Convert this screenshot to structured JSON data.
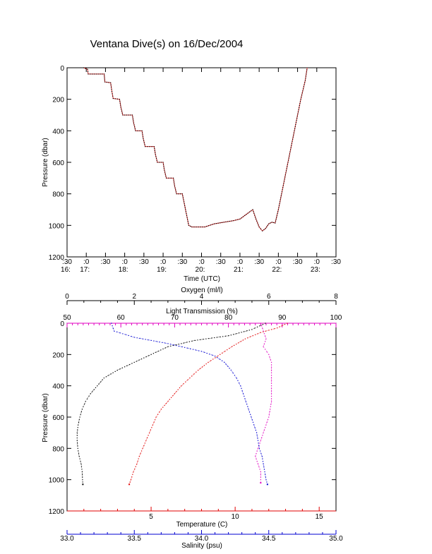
{
  "title": "Ventana Dive(s) on 16/Dec/2004",
  "chart_data": [
    {
      "type": "line",
      "name": "time-series",
      "xlabel": "Time (UTC)",
      "ylabel": "Pressure (dbar)",
      "xlim": [
        "16:30",
        "23:30"
      ],
      "ylim": [
        1200,
        0
      ],
      "x_ticks": [
        {
          "top": ":30",
          "bottom": "16:"
        },
        {
          "top": ":0",
          "bottom": "17:"
        },
        {
          "top": ":30",
          "bottom": ""
        },
        {
          "top": ":0",
          "bottom": "18:"
        },
        {
          "top": ":30",
          "bottom": ""
        },
        {
          "top": ":0",
          "bottom": "19:"
        },
        {
          "top": ":30",
          "bottom": ""
        },
        {
          "top": ":0",
          "bottom": "20:"
        },
        {
          "top": ":30",
          "bottom": ""
        },
        {
          "top": ":0",
          "bottom": "21:"
        },
        {
          "top": ":30",
          "bottom": ""
        },
        {
          "top": ":0",
          "bottom": "22:"
        },
        {
          "top": ":30",
          "bottom": ""
        },
        {
          "top": ":0",
          "bottom": "23:"
        },
        {
          "top": ":30",
          "bottom": ""
        }
      ],
      "y_ticks": [
        "0",
        "200",
        "400",
        "600",
        "800",
        "1000",
        "1200"
      ],
      "color": "#e03030",
      "series": [
        {
          "values": [
            {
              "t": "16:56",
              "p": 0
            },
            {
              "t": "17:02",
              "p": 10
            },
            {
              "t": "17:03",
              "p": 40
            },
            {
              "t": "17:28",
              "p": 40
            },
            {
              "t": "17:29",
              "p": 90
            },
            {
              "t": "17:38",
              "p": 95
            },
            {
              "t": "17:40",
              "p": 150
            },
            {
              "t": "17:42",
              "p": 195
            },
            {
              "t": "17:52",
              "p": 200
            },
            {
              "t": "17:54",
              "p": 250
            },
            {
              "t": "17:57",
              "p": 300
            },
            {
              "t": "18:12",
              "p": 300
            },
            {
              "t": "18:14",
              "p": 350
            },
            {
              "t": "18:17",
              "p": 400
            },
            {
              "t": "18:27",
              "p": 400
            },
            {
              "t": "18:29",
              "p": 450
            },
            {
              "t": "18:32",
              "p": 500
            },
            {
              "t": "18:46",
              "p": 500
            },
            {
              "t": "18:48",
              "p": 550
            },
            {
              "t": "18:51",
              "p": 600
            },
            {
              "t": "19:00",
              "p": 600
            },
            {
              "t": "19:02",
              "p": 650
            },
            {
              "t": "19:05",
              "p": 700
            },
            {
              "t": "19:16",
              "p": 700
            },
            {
              "t": "19:18",
              "p": 750
            },
            {
              "t": "19:21",
              "p": 800
            },
            {
              "t": "19:30",
              "p": 800
            },
            {
              "t": "19:35",
              "p": 900
            },
            {
              "t": "19:40",
              "p": 1000
            },
            {
              "t": "19:45",
              "p": 1010
            },
            {
              "t": "20:05",
              "p": 1010
            },
            {
              "t": "20:20",
              "p": 990
            },
            {
              "t": "20:35",
              "p": 980
            },
            {
              "t": "20:50",
              "p": 970
            },
            {
              "t": "21:00",
              "p": 960
            },
            {
              "t": "21:10",
              "p": 930
            },
            {
              "t": "21:20",
              "p": 900
            },
            {
              "t": "21:25",
              "p": 960
            },
            {
              "t": "21:30",
              "p": 1010
            },
            {
              "t": "21:35",
              "p": 1035
            },
            {
              "t": "21:40",
              "p": 1020
            },
            {
              "t": "21:45",
              "p": 990
            },
            {
              "t": "21:50",
              "p": 980
            },
            {
              "t": "21:55",
              "p": 985
            },
            {
              "t": "22:00",
              "p": 900
            },
            {
              "t": "22:05",
              "p": 800
            },
            {
              "t": "22:15",
              "p": 600
            },
            {
              "t": "22:25",
              "p": 400
            },
            {
              "t": "22:35",
              "p": 200
            },
            {
              "t": "22:42",
              "p": 80
            },
            {
              "t": "22:45",
              "p": 0
            }
          ]
        }
      ]
    },
    {
      "type": "scatter",
      "name": "profiles",
      "ylabel": "Pressure (dbar)",
      "ylim": [
        1200,
        0
      ],
      "y_ticks": [
        "0",
        "200",
        "400",
        "600",
        "800",
        "1000",
        "1200"
      ],
      "axes": {
        "oxygen": {
          "label": "Oxygen (ml/l)",
          "range": [
            0,
            8
          ],
          "ticks": [
            "0",
            "2",
            "4",
            "6",
            "8"
          ],
          "color": "#000000"
        },
        "light": {
          "label": "Light Transmission (%)",
          "range": [
            50,
            100
          ],
          "ticks": [
            "50",
            "60",
            "70",
            "80",
            "90",
            "100"
          ],
          "color": "#e000c0"
        },
        "temperature": {
          "label": "Temperature (C)",
          "range": [
            0,
            16
          ],
          "ticks": [
            "5",
            "10",
            "15"
          ],
          "color": "#e00000"
        },
        "salinity": {
          "label": "Salinity (psu)",
          "range": [
            33.0,
            35.0
          ],
          "ticks": [
            "33.0",
            "33.5",
            "34.0",
            "34.5",
            "35.0"
          ],
          "color": "#0000d0"
        }
      },
      "series": [
        {
          "axis": "oxygen",
          "values": [
            [
              5.9,
              0
            ],
            [
              5.5,
              40
            ],
            [
              4.8,
              80
            ],
            [
              3.8,
              110
            ],
            [
              3.0,
              150
            ],
            [
              2.5,
              200
            ],
            [
              2.0,
              250
            ],
            [
              1.5,
              300
            ],
            [
              1.1,
              350
            ],
            [
              0.9,
              400
            ],
            [
              0.7,
              450
            ],
            [
              0.55,
              500
            ],
            [
              0.45,
              550
            ],
            [
              0.38,
              600
            ],
            [
              0.33,
              650
            ],
            [
              0.3,
              700
            ],
            [
              0.3,
              750
            ],
            [
              0.32,
              800
            ],
            [
              0.36,
              850
            ],
            [
              0.42,
              900
            ],
            [
              0.45,
              950
            ],
            [
              0.46,
              1000
            ],
            [
              0.47,
              1030
            ]
          ]
        },
        {
          "axis": "light",
          "values": [
            [
              86,
              0
            ],
            [
              86.5,
              50
            ],
            [
              87,
              100
            ],
            [
              86.5,
              150
            ],
            [
              87.5,
              200
            ],
            [
              88,
              250
            ],
            [
              88,
              300
            ],
            [
              88,
              400
            ],
            [
              88,
              500
            ],
            [
              87.5,
              600
            ],
            [
              86.5,
              700
            ],
            [
              85.5,
              800
            ],
            [
              85,
              850
            ],
            [
              85.5,
              900
            ],
            [
              86,
              950
            ],
            [
              86,
              1000
            ],
            [
              86,
              1020
            ]
          ]
        },
        {
          "axis": "temperature",
          "values": [
            [
              13.1,
              0
            ],
            [
              12.5,
              30
            ],
            [
              11.5,
              60
            ],
            [
              10.6,
              100
            ],
            [
              9.8,
              150
            ],
            [
              9.1,
              200
            ],
            [
              8.4,
              250
            ],
            [
              7.8,
              300
            ],
            [
              7.3,
              350
            ],
            [
              6.8,
              400
            ],
            [
              6.4,
              450
            ],
            [
              6.0,
              500
            ],
            [
              5.6,
              550
            ],
            [
              5.3,
              600
            ],
            [
              5.1,
              650
            ],
            [
              4.9,
              700
            ],
            [
              4.7,
              750
            ],
            [
              4.5,
              800
            ],
            [
              4.3,
              850
            ],
            [
              4.15,
              900
            ],
            [
              3.95,
              950
            ],
            [
              3.8,
              1000
            ],
            [
              3.7,
              1030
            ]
          ]
        },
        {
          "axis": "salinity",
          "values": [
            [
              33.33,
              0
            ],
            [
              33.35,
              50
            ],
            [
              33.5,
              90
            ],
            [
              33.75,
              130
            ],
            [
              34.0,
              180
            ],
            [
              34.1,
              210
            ],
            [
              34.17,
              250
            ],
            [
              34.22,
              300
            ],
            [
              34.26,
              350
            ],
            [
              34.29,
              400
            ],
            [
              34.31,
              450
            ],
            [
              34.33,
              500
            ],
            [
              34.35,
              550
            ],
            [
              34.37,
              600
            ],
            [
              34.39,
              650
            ],
            [
              34.41,
              700
            ],
            [
              34.42,
              750
            ],
            [
              34.43,
              800
            ],
            [
              34.45,
              850
            ],
            [
              34.46,
              900
            ],
            [
              34.47,
              950
            ],
            [
              34.48,
              1000
            ],
            [
              34.49,
              1030
            ]
          ]
        }
      ]
    }
  ]
}
